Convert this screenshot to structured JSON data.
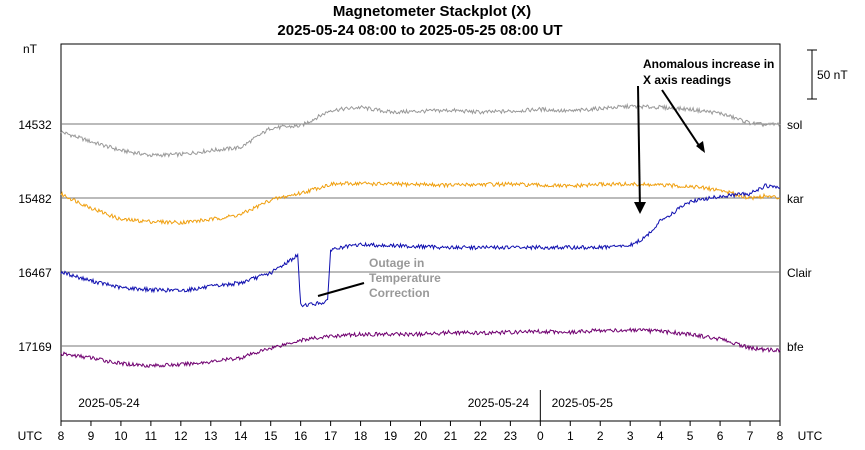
{
  "chart_data": {
    "type": "line",
    "title": "Magnetometer Stackplot (X)",
    "subtitle": "2025-05-24 08:00 to 2025-05-25 08:00 UT",
    "yunit": "nT",
    "scale_bar_label": "50 nT",
    "scale_bar_value": 50,
    "x_axis_label": "UTC",
    "x_ticks": [
      "8",
      "9",
      "10",
      "11",
      "12",
      "13",
      "14",
      "15",
      "16",
      "17",
      "18",
      "19",
      "20",
      "21",
      "22",
      "23",
      "0",
      "1",
      "2",
      "3",
      "4",
      "5",
      "6",
      "7",
      "8"
    ],
    "x_range": [
      0,
      24
    ],
    "date_labels": [
      {
        "text": "2025-05-24",
        "at_hour": 1.6
      },
      {
        "text": "2025-05-24",
        "at_hour": 14.6
      },
      {
        "text": "2025-05-25",
        "at_hour": 17.4
      }
    ],
    "day_boundary_hour": 16,
    "grid": false,
    "series": [
      {
        "name": "sol",
        "baseline": "14532",
        "color": "#999999",
        "points": [
          [
            0,
            -8
          ],
          [
            1,
            -18
          ],
          [
            2,
            -27
          ],
          [
            3,
            -32
          ],
          [
            4,
            -31
          ],
          [
            5,
            -27
          ],
          [
            6,
            -24
          ],
          [
            7,
            -4
          ],
          [
            8,
            -2
          ],
          [
            9,
            14
          ],
          [
            10,
            17
          ],
          [
            11,
            12
          ],
          [
            12,
            13
          ],
          [
            13,
            14
          ],
          [
            14,
            12
          ],
          [
            15,
            13
          ],
          [
            16,
            15
          ],
          [
            17,
            13
          ],
          [
            18,
            16
          ],
          [
            19,
            18
          ],
          [
            20,
            17
          ],
          [
            21,
            15
          ],
          [
            22,
            11
          ],
          [
            23,
            1
          ],
          [
            23.5,
            -1
          ],
          [
            24,
            0
          ]
        ]
      },
      {
        "name": "kar",
        "baseline": "15482",
        "color": "#f0a010",
        "points": [
          [
            0,
            4
          ],
          [
            1,
            -10
          ],
          [
            2,
            -22
          ],
          [
            3,
            -24
          ],
          [
            4,
            -25
          ],
          [
            5,
            -22
          ],
          [
            6,
            -17
          ],
          [
            7,
            -2
          ],
          [
            8,
            5
          ],
          [
            9,
            14
          ],
          [
            10,
            15
          ],
          [
            11,
            14
          ],
          [
            12,
            14
          ],
          [
            13,
            13
          ],
          [
            14,
            14
          ],
          [
            15,
            14
          ],
          [
            16,
            13
          ],
          [
            17,
            12
          ],
          [
            18,
            14
          ],
          [
            19,
            14
          ],
          [
            20,
            13
          ],
          [
            21,
            12
          ],
          [
            22,
            8
          ],
          [
            23,
            0
          ],
          [
            23.5,
            2
          ],
          [
            24,
            0
          ]
        ]
      },
      {
        "name": "Clair",
        "baseline": "16467",
        "color": "#1010b0",
        "points": [
          [
            0,
            0
          ],
          [
            1,
            -9
          ],
          [
            2,
            -16
          ],
          [
            3,
            -18
          ],
          [
            4,
            -19
          ],
          [
            5,
            -15
          ],
          [
            6,
            -11
          ],
          [
            7,
            -1
          ],
          [
            7.9,
            17
          ],
          [
            8,
            -34
          ],
          [
            8.6,
            -32
          ],
          [
            8.9,
            -30
          ],
          [
            9,
            23
          ],
          [
            10,
            28
          ],
          [
            11,
            27
          ],
          [
            12,
            26
          ],
          [
            13,
            25
          ],
          [
            14,
            25
          ],
          [
            15,
            25
          ],
          [
            16,
            25
          ],
          [
            17,
            25
          ],
          [
            18,
            25
          ],
          [
            19,
            27
          ],
          [
            19.5,
            35
          ],
          [
            20,
            52
          ],
          [
            21,
            72
          ],
          [
            22,
            77
          ],
          [
            23,
            80
          ],
          [
            23.5,
            88
          ],
          [
            24,
            86
          ]
        ]
      },
      {
        "name": "bfe",
        "baseline": "17169",
        "color": "#700070",
        "points": [
          [
            0,
            -8
          ],
          [
            1,
            -12
          ],
          [
            2,
            -18
          ],
          [
            3,
            -20
          ],
          [
            4,
            -19
          ],
          [
            5,
            -16
          ],
          [
            6,
            -12
          ],
          [
            7,
            -2
          ],
          [
            8,
            6
          ],
          [
            9,
            10
          ],
          [
            10,
            12
          ],
          [
            11,
            12
          ],
          [
            12,
            12
          ],
          [
            13,
            14
          ],
          [
            14,
            13
          ],
          [
            15,
            14
          ],
          [
            16,
            15
          ],
          [
            17,
            14
          ],
          [
            18,
            16
          ],
          [
            19,
            16
          ],
          [
            20,
            15
          ],
          [
            21,
            12
          ],
          [
            22,
            7
          ],
          [
            23,
            -2
          ],
          [
            23.5,
            -4
          ],
          [
            24,
            -4
          ]
        ]
      }
    ],
    "annotations": [
      {
        "lines": [
          "Anomalous increase in",
          "X axis readings"
        ],
        "color": "#000000"
      },
      {
        "lines": [
          "Outage in",
          "Temperature",
          "Correction"
        ],
        "color": "#999999"
      }
    ]
  }
}
